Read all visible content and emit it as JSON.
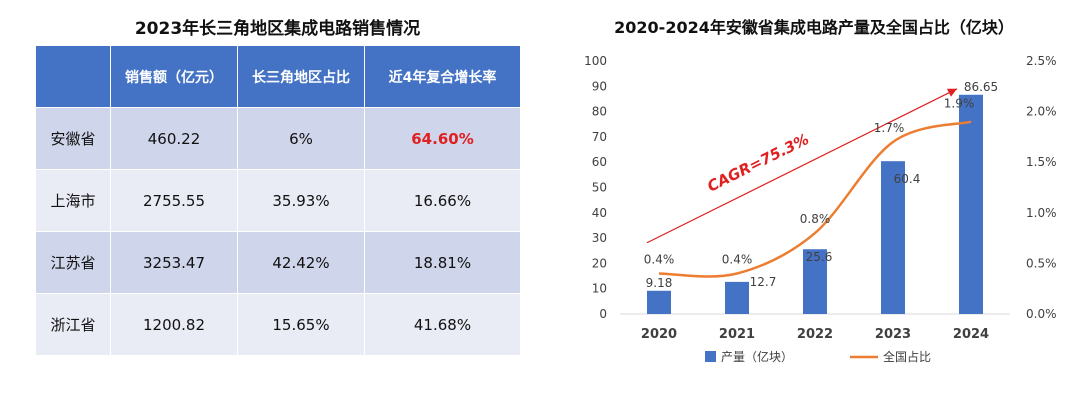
{
  "left_table": {
    "title": "2023年长三角地区集成电路销售情况",
    "headers": [
      "",
      "销售额（亿元）",
      "长三角地区占比",
      "近4年复合增长率"
    ],
    "rows": [
      [
        "安徽省",
        "460.22",
        "6%",
        "64.60%"
      ],
      [
        "上海市",
        "2755.55",
        "35.93%",
        "16.66%"
      ],
      [
        "江苏省",
        "3253.47",
        "42.42%",
        "18.81%"
      ],
      [
        "浙江省",
        "1200.82",
        "15.65%",
        "41.68%"
      ]
    ],
    "highlight_color": "#e02020"
  },
  "chart_data": {
    "type": "bar",
    "title": "2020-2024年安徽省集成电路产量及全国占比（亿块）",
    "categories": [
      "2020",
      "2021",
      "2022",
      "2023",
      "2024"
    ],
    "series": [
      {
        "name": "产量（亿块）",
        "type": "bar",
        "axis": "left",
        "values": [
          9.18,
          12.7,
          25.6,
          60.4,
          86.65
        ],
        "labels": [
          "9.18",
          "12.7",
          "25.6",
          "60.4",
          "86.65"
        ],
        "color": "#4472c4"
      },
      {
        "name": "全国占比",
        "type": "line",
        "axis": "right",
        "values": [
          0.4,
          0.4,
          0.8,
          1.7,
          1.9
        ],
        "labels": [
          "0.4%",
          "0.4%",
          "0.8%",
          "1.7%",
          "1.9%"
        ],
        "color": "#ed7d31"
      }
    ],
    "y_left": {
      "min": 0,
      "max": 100,
      "ticks": [
        "0",
        "10",
        "20",
        "30",
        "40",
        "50",
        "60",
        "70",
        "80",
        "90",
        "100"
      ]
    },
    "y_right": {
      "min": 0,
      "max": 2.5,
      "ticks": [
        "0.0%",
        "0.5%",
        "1.0%",
        "1.5%",
        "2.0%",
        "2.5%"
      ]
    },
    "annotation": {
      "text": "CAGR=75.3%",
      "color": "#e02020"
    },
    "legend": "bottom",
    "grid": false
  }
}
